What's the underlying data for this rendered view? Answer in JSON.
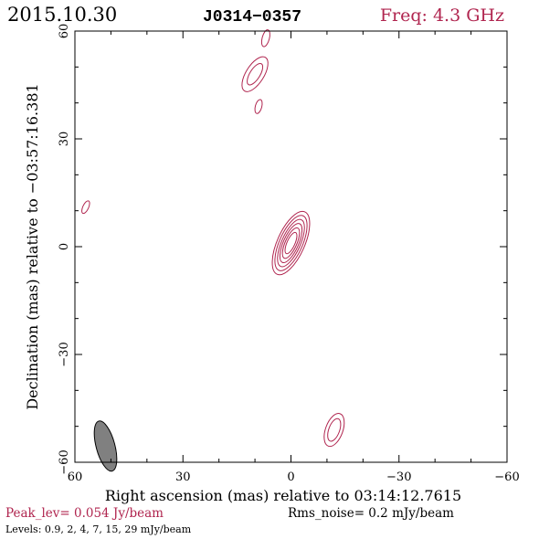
{
  "header": {
    "date": "2015.10.30",
    "source": "J0314−0357",
    "freq": "Freq: 4.3 GHz"
  },
  "footer": {
    "peak": "Peak_lev=  0.054 Jy/beam",
    "rms": "Rms_noise=  0.2 mJy/beam",
    "levels": "Levels: 0.9,   2,   4,   7,  15,  29 mJy/beam"
  },
  "colors": {
    "contour": "#b0254f",
    "beam": "#808080",
    "axes": "#000000",
    "peak_text": "#b0254f",
    "freq_text": "#b0254f"
  },
  "chart_data": {
    "type": "contour",
    "xlabel": "Right ascension (mas) relative to 03:14:12.7615",
    "ylabel": "Declination (mas) relative to −03:57:16.381",
    "xlim": [
      60,
      -60
    ],
    "ylim": [
      -60,
      60
    ],
    "x_ticks": [
      60,
      30,
      0,
      -30,
      -60
    ],
    "x_tick_labels": [
      "60",
      "30",
      "0",
      "−30",
      "−60"
    ],
    "y_ticks": [
      -60,
      -30,
      0,
      30,
      60
    ],
    "y_tick_labels": [
      "−60",
      "−30",
      "0",
      "30",
      "60"
    ],
    "levels_mJy": [
      0.9,
      2,
      4,
      7,
      15,
      29
    ],
    "peak_Jy_per_beam": 0.054,
    "rms_mJy_per_beam": 0.2,
    "beam": {
      "x": 51.5,
      "y": -55.5,
      "major": 7.2,
      "minor": 2.6,
      "pa_deg": 15
    },
    "components": [
      {
        "x": 0,
        "y": 1,
        "pa_deg": 24,
        "contours": [
          {
            "a": 9.5,
            "b": 3.8
          },
          {
            "a": 8.3,
            "b": 3.2
          },
          {
            "a": 7.1,
            "b": 2.6
          },
          {
            "a": 5.9,
            "b": 2.1
          },
          {
            "a": 4.6,
            "b": 1.6
          },
          {
            "a": 3.2,
            "b": 1.1
          }
        ]
      },
      {
        "x": -12,
        "y": -51,
        "pa_deg": 20,
        "contours": [
          {
            "a": 4.8,
            "b": 2.4
          },
          {
            "a": 3.3,
            "b": 1.5
          }
        ]
      },
      {
        "x": 10,
        "y": 48,
        "pa_deg": 32,
        "contours": [
          {
            "a": 5.5,
            "b": 2.5
          },
          {
            "a": 3.4,
            "b": 1.4
          }
        ]
      },
      {
        "x": 9,
        "y": 39,
        "pa_deg": 15,
        "contours": [
          {
            "a": 2.0,
            "b": 0.9
          }
        ]
      },
      {
        "x": 7,
        "y": 58,
        "pa_deg": 15,
        "contours": [
          {
            "a": 2.4,
            "b": 1.0
          }
        ]
      },
      {
        "x": 57,
        "y": 11,
        "pa_deg": 25,
        "contours": [
          {
            "a": 1.9,
            "b": 0.8
          }
        ]
      }
    ]
  }
}
